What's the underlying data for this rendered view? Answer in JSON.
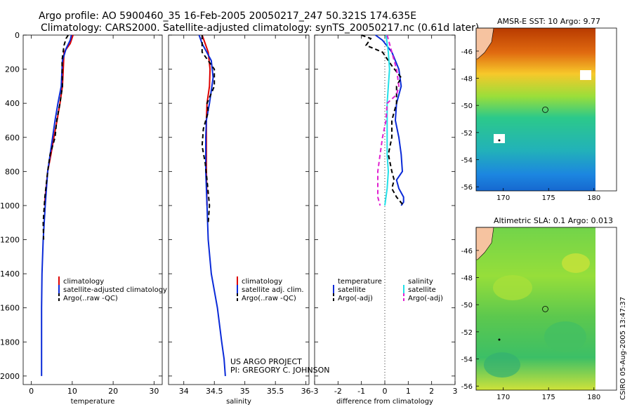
{
  "title": {
    "line1": "Argo profile: AO 5900460_35 16-Feb-2005 20050217_247 50.321S 174.635E",
    "line2": "Climatology: CARS2000. Satellite-adjusted climatology: synTS_20050217.nc (0.61d later)"
  },
  "credit": {
    "line1": "US ARGO PROJECT",
    "line2": "PI: GREGORY C. JOHNSON"
  },
  "side_label": "CSIRO 05-Aug-2005 13:47:37",
  "colors": {
    "climatology": "#dd0000",
    "satellite": "#0a2ad8",
    "argo": "#000000",
    "sal_sat": "#22e0e8",
    "sal_argo": "#e020d0"
  },
  "chart_data": [
    {
      "type": "line",
      "xlabel": "temperature",
      "ylabel": "",
      "xlim": [
        -2,
        32
      ],
      "ylim": [
        2050,
        0
      ],
      "xticks": [
        "0",
        "10",
        "20",
        "30"
      ],
      "yticks": [
        "0",
        "200",
        "400",
        "600",
        "800",
        "1000",
        "1200",
        "1400",
        "1600",
        "1800",
        "2000"
      ],
      "legend_labels": [
        "climatology",
        "satellite-adjusted climatology",
        "Argo(..raw -QC)"
      ],
      "series": [
        {
          "name": "climatology",
          "x": [
            10.2,
            9.5,
            8.0,
            7.8,
            7.6,
            7.0,
            6.3,
            5.5,
            4.8,
            4.0,
            3.2
          ],
          "y": [
            0,
            50,
            100,
            200,
            300,
            400,
            500,
            600,
            700,
            800,
            1000
          ]
        },
        {
          "name": "satellite-adjusted climatology",
          "x": [
            9.8,
            9.5,
            8.5,
            7.6,
            7.3,
            6.5,
            5.8,
            5.2,
            4.6,
            4.0,
            3.4,
            2.9,
            2.6,
            2.5,
            2.5,
            2.5,
            2.5
          ],
          "y": [
            0,
            30,
            80,
            150,
            300,
            400,
            500,
            600,
            700,
            800,
            1000,
            1200,
            1400,
            1600,
            1800,
            1900,
            2000
          ]
        },
        {
          "name": "Argo(..raw -QC)",
          "x": [
            9.0,
            8.5,
            8.0,
            7.5,
            7.6,
            7.0,
            6.2,
            5.8,
            4.6,
            4.0,
            3.3,
            2.9,
            3.0
          ],
          "y": [
            0,
            20,
            60,
            150,
            300,
            400,
            500,
            600,
            700,
            800,
            950,
            1100,
            1200
          ]
        }
      ]
    },
    {
      "type": "line",
      "xlabel": "salinity",
      "ylabel": "",
      "xlim": [
        33.75,
        36.05
      ],
      "ylim": [
        2050,
        0
      ],
      "xticks": [
        "34",
        "34.5",
        "35",
        "35.5",
        "36"
      ],
      "legend_labels": [
        "climatology",
        "satellite adj. clim.",
        "Argo(..raw -QC)"
      ],
      "series": [
        {
          "name": "climatology",
          "x": [
            34.3,
            34.35,
            34.4,
            34.43,
            34.42,
            34.38,
            34.37,
            34.37,
            34.37,
            34.38
          ],
          "y": [
            0,
            50,
            100,
            200,
            300,
            400,
            500,
            600,
            800,
            1000
          ]
        },
        {
          "name": "satellite adj. clim.",
          "x": [
            34.25,
            34.3,
            34.45,
            34.48,
            34.42,
            34.37,
            34.36,
            34.36,
            34.38,
            34.4,
            34.45,
            34.55,
            34.62,
            34.66,
            34.68
          ],
          "y": [
            0,
            50,
            150,
            250,
            400,
            500,
            600,
            800,
            1000,
            1200,
            1400,
            1600,
            1800,
            1900,
            2000
          ]
        },
        {
          "name": "Argo(..raw -QC)",
          "x": [
            34.3,
            34.3,
            34.5,
            34.5,
            34.38,
            34.4,
            34.32,
            34.3,
            34.35,
            34.38,
            34.42,
            34.4
          ],
          "y": [
            0,
            100,
            200,
            300,
            400,
            450,
            550,
            650,
            750,
            850,
            1000,
            1100
          ]
        }
      ]
    },
    {
      "type": "line",
      "xlabel": "difference from climatology",
      "ylabel": "",
      "xlim": [
        -3,
        3
      ],
      "ylim": [
        2050,
        0
      ],
      "xticks": [
        "-3",
        "-2",
        "-1",
        "0",
        "1",
        "2",
        "3"
      ],
      "legend_left": {
        "title": "temperature",
        "items": [
          "satellite",
          "Argo(-adj)"
        ]
      },
      "legend_right": {
        "title": "salinity",
        "items": [
          "satellite",
          "Argo(-adj)"
        ]
      },
      "series": [
        {
          "name": "temperature satellite",
          "x": [
            -0.4,
            -0.1,
            0.3,
            0.6,
            0.7,
            0.5,
            0.45,
            0.6,
            0.7,
            0.75,
            0.5,
            0.6,
            0.8,
            0.8,
            0.7
          ],
          "y": [
            0,
            30,
            100,
            200,
            300,
            400,
            500,
            600,
            700,
            800,
            850,
            900,
            950,
            980,
            1000
          ]
        },
        {
          "name": "temperature Argo(-adj)",
          "x": [
            -1.0,
            -0.6,
            -0.8,
            -0.1,
            0.3,
            0.7,
            0.5,
            0.5,
            0.3,
            0.3,
            0.15,
            0.3,
            0.4,
            0.3,
            0.5,
            0.8
          ],
          "y": [
            0,
            20,
            60,
            100,
            180,
            250,
            300,
            400,
            500,
            600,
            700,
            800,
            850,
            900,
            950,
            1000
          ]
        },
        {
          "name": "salinity satellite",
          "x": [
            0.05,
            0.15,
            0.2,
            0.15,
            0.1,
            0.1,
            0.1,
            0.15,
            0.1,
            0.0
          ],
          "y": [
            0,
            100,
            200,
            300,
            400,
            600,
            700,
            800,
            900,
            1000
          ]
        },
        {
          "name": "salinity Argo(-adj)",
          "x": [
            0.1,
            0.5,
            0.6,
            0.5,
            0.1,
            0.05,
            -0.1,
            -0.2,
            -0.3,
            -0.3,
            -0.3,
            -0.2
          ],
          "y": [
            0,
            200,
            300,
            350,
            400,
            500,
            600,
            700,
            800,
            900,
            950,
            1000
          ]
        }
      ]
    },
    {
      "type": "heatmap",
      "title": "AMSR-E SST: 10 Argo: 9.77",
      "xlim": [
        167,
        182.5
      ],
      "ylim": [
        -56.3,
        -44.3
      ],
      "xticks": [
        "170",
        "175",
        "180"
      ],
      "yticks": [
        "-46",
        "-48",
        "-50",
        "-52",
        "-54",
        "-56"
      ],
      "marker": {
        "lon": 174.635,
        "lat": -50.321
      }
    },
    {
      "type": "heatmap",
      "title": "Altimetric SLA: 0.1 Argo: 0.013",
      "xlim": [
        167,
        182.5
      ],
      "ylim": [
        -56.3,
        -44.3
      ],
      "xticks": [
        "170",
        "175",
        "180"
      ],
      "yticks": [
        "-46",
        "-48",
        "-50",
        "-52",
        "-54",
        "-56"
      ],
      "marker": {
        "lon": 174.635,
        "lat": -50.321
      }
    }
  ]
}
